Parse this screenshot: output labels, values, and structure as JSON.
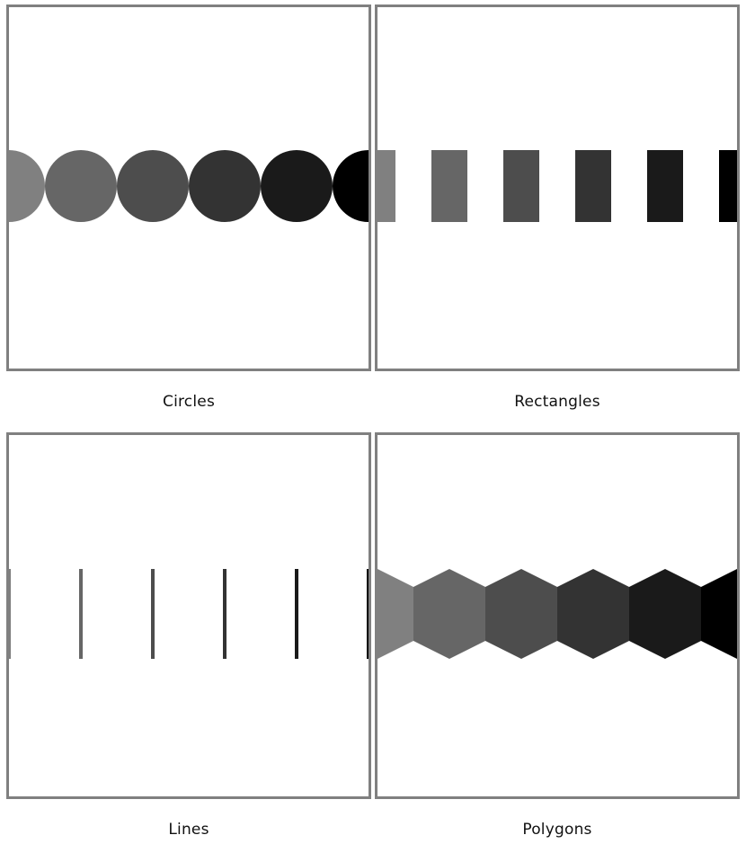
{
  "panels": [
    {
      "key": "circles",
      "label": "Circles",
      "shape": "circle"
    },
    {
      "key": "rects",
      "label": "Rectangles",
      "shape": "rectangle"
    },
    {
      "key": "lines",
      "label": "Lines",
      "shape": "line"
    },
    {
      "key": "polys",
      "label": "Polygons",
      "shape": "hexagon"
    }
  ],
  "fills": [
    "#808080",
    "#666666",
    "#4d4d4d",
    "#333333",
    "#1a1a1a",
    "#000000"
  ],
  "border_color": "#808080"
}
